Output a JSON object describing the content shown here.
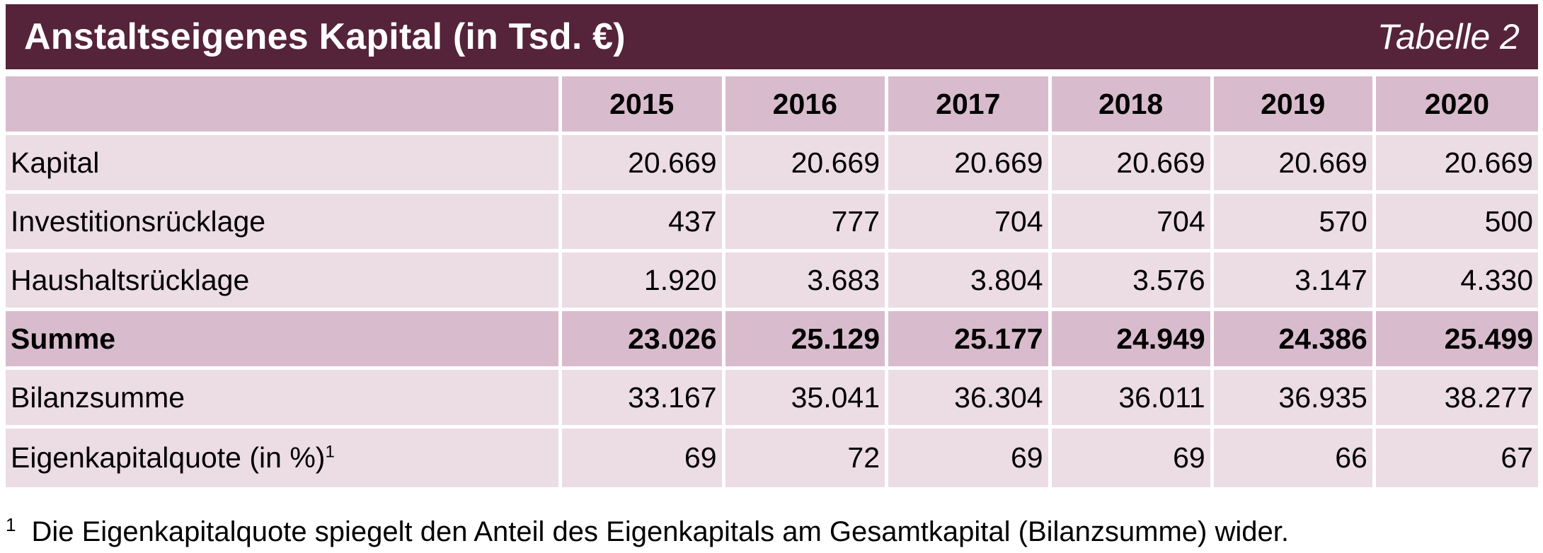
{
  "header": {
    "title": "Anstaltseigenes Kapital (in Tsd. €)",
    "table_label": "Tabelle 2"
  },
  "table": {
    "corner": "",
    "years": [
      "2015",
      "2016",
      "2017",
      "2018",
      "2019",
      "2020"
    ],
    "rows": [
      {
        "label": "Kapital",
        "sup": "",
        "values": [
          "20.669",
          "20.669",
          "20.669",
          "20.669",
          "20.669",
          "20.669"
        ]
      },
      {
        "label": "Investitionsrücklage",
        "sup": "",
        "values": [
          "437",
          "777",
          "704",
          "704",
          "570",
          "500"
        ]
      },
      {
        "label": "Haushaltsrücklage",
        "sup": "",
        "values": [
          "1.920",
          "3.683",
          "3.804",
          "3.576",
          "3.147",
          "4.330"
        ]
      },
      {
        "label": "Summe",
        "sup": "",
        "values": [
          "23.026",
          "25.129",
          "25.177",
          "24.949",
          "24.386",
          "25.499"
        ]
      },
      {
        "label": "Bilanzsumme",
        "sup": "",
        "values": [
          "33.167",
          "35.041",
          "36.304",
          "36.011",
          "36.935",
          "38.277"
        ]
      },
      {
        "label": "Eigenkapitalquote (in %)",
        "sup": "1",
        "values": [
          "69",
          "72",
          "69",
          "69",
          "66",
          "67"
        ]
      }
    ]
  },
  "footnote": {
    "marker": "1",
    "text": "Die Eigenkapitalquote spiegelt den Anteil des Eigenkapitals am Gesamtkapital (Bilanzsumme) wider."
  },
  "colors": {
    "title_bar": "#55233a",
    "header_row": "#d8bccd",
    "data_row": "#ecdce4",
    "sum_row": "#d8bccd"
  }
}
